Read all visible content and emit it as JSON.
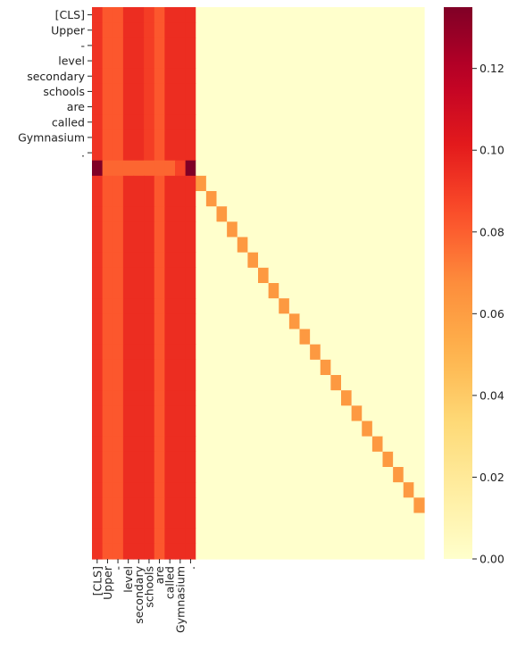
{
  "chart_data": {
    "type": "heatmap",
    "title": "",
    "xlabel": "",
    "ylabel": "",
    "x_tokens": [
      "[CLS]",
      "Upper",
      "-",
      "level",
      "secondary",
      "schools",
      "are",
      "called",
      "Gymnasium",
      "."
    ],
    "y_tokens": [
      "[CLS]",
      "Upper",
      "-",
      "level",
      "secondary",
      "schools",
      "are",
      "called",
      "Gymnasium",
      "."
    ],
    "n_rows": 36,
    "n_cols": 32,
    "colormap": "YlOrRd",
    "colorbar": {
      "min": 0.0,
      "max": 0.135,
      "ticks": [
        "0.00",
        "0.02",
        "0.04",
        "0.06",
        "0.08",
        "0.10",
        "0.12"
      ],
      "tick_values": [
        0.0,
        0.02,
        0.04,
        0.06,
        0.08,
        0.1,
        0.12
      ]
    },
    "token_row_values": [
      0.093,
      0.082,
      0.082,
      0.095,
      0.095,
      0.09,
      0.082,
      0.095,
      0.095,
      0.095
    ],
    "separator_row_values": [
      0.135,
      0.078,
      0.078,
      0.078,
      0.078,
      0.078,
      0.078,
      0.078,
      0.088,
      0.135
    ],
    "padding_row_values": [
      0.093,
      0.082,
      0.082,
      0.095,
      0.095,
      0.095,
      0.082,
      0.095,
      0.095,
      0.095
    ],
    "diagonal_value": 0.062,
    "background_value": 0.0
  }
}
